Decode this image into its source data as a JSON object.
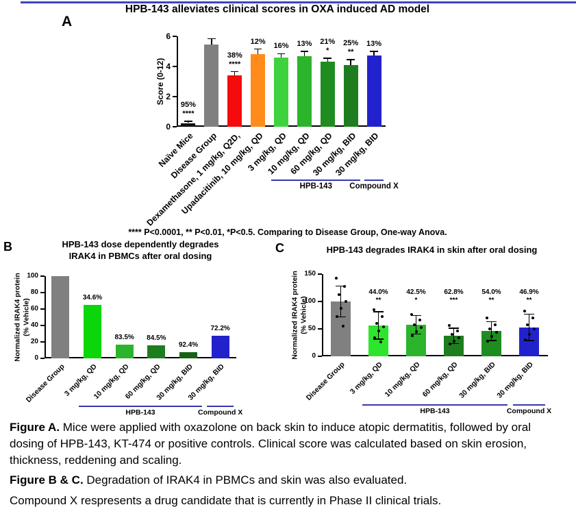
{
  "panels": {
    "a": "A",
    "b": "B",
    "c": "C"
  },
  "footnote": "**** P<0.0001, ** P<0.01, *P<0.5. Comparing to Disease Group, One-way Anova.",
  "captions": {
    "fig_a_lead": "Figure A.",
    "fig_a_text": " Mice were applied with oxazolone on back skin to induce atopic dermatitis, followed by oral dosing of HPB-143, KT-474 or positive controls. Clinical score was calculated based on skin erosion, thickness, reddening and scaling.",
    "fig_bc_lead": "Figure B & C.",
    "fig_bc_text": " Degradation of IRAK4 in PBMCs and skin was also evaluated.",
    "compound_x": "Compound X respresents a drug candidate that is currently in Phase II clinical trials."
  },
  "colors": {
    "top_rule": "#3a45c0",
    "group_line": "#3636b0"
  },
  "chart_data": [
    {
      "id": "chartA",
      "type": "bar",
      "title": "HPB-143 alleviates clinical scores in OXA induced AD model",
      "ylabel": "Score (0-12)",
      "ylim": [
        0,
        6
      ],
      "yticks": [
        0,
        2,
        4,
        6
      ],
      "categories": [
        "Naïve Mice",
        "Disease Group",
        "Dexamethasone, 1 mg/kg, Q2D,",
        "Upadacitinib, 10 mg/kg, QD",
        "3 mg/kg, QD",
        "10 mg/kg, QD",
        "60 mg/kg, QD",
        "30 mg/kg, BID",
        "30 mg/kg, BID"
      ],
      "values": [
        0.25,
        5.45,
        3.4,
        4.8,
        4.6,
        4.7,
        4.3,
        4.1,
        4.75
      ],
      "errors": [
        0.12,
        0.4,
        0.25,
        0.35,
        0.25,
        0.3,
        0.25,
        0.35,
        0.25
      ],
      "bar_colors": [
        "#111111",
        "#808080",
        "#f40b0b",
        "#ff8c1a",
        "#3fd23f",
        "#2cb42c",
        "#1f8c1f",
        "#1e7d1e",
        "#2222cc"
      ],
      "annotations": [
        "95%\n****",
        "",
        "38%\n****",
        "12%",
        "16%",
        "13%",
        "21%\n*",
        "25%\n**",
        "13%"
      ],
      "groups": [
        {
          "label": "HPB-143",
          "from": 4,
          "to": 7
        },
        {
          "label": "Compound X",
          "from": 8,
          "to": 8
        }
      ]
    },
    {
      "id": "chartB",
      "type": "bar",
      "title": "HPB-143 dose dependently degrades IRAK4 in PBMCs after oral dosing",
      "title_lines": [
        "HPB-143 dose dependently degrades",
        "IRAK4 in PBMCs after oral dosing"
      ],
      "ylabel": "Normalized IRAK4 protein\n(% Vehicle)",
      "ylim": [
        0,
        100
      ],
      "yticks": [
        0,
        20,
        40,
        60,
        80,
        100
      ],
      "categories": [
        "Disease Group",
        "3 mg/kg, QD",
        "10 mg/kg, QD",
        "60 mg/kg, QD",
        "30 mg/kg, BID",
        "30 mg/kg, BID"
      ],
      "values": [
        100,
        65.4,
        16.5,
        15.5,
        7.6,
        27.8
      ],
      "errors": null,
      "bar_colors": [
        "#808080",
        "#0ad60a",
        "#2cb42c",
        "#1e7d1e",
        "#176117",
        "#2222cc"
      ],
      "annotations": [
        "",
        "34.6%",
        "83.5%",
        "84.5%",
        "92.4%",
        "72.2%"
      ],
      "groups": [
        {
          "label": "HPB-143",
          "from": 1,
          "to": 4
        },
        {
          "label": "Compound X",
          "from": 5,
          "to": 5
        }
      ]
    },
    {
      "id": "chartC",
      "type": "bar",
      "title": "HPB-143 degrades IRAK4 in skin after oral dosing",
      "ylabel": "Normalized IRAK4 protein\n(% Vehicle)",
      "ylim": [
        0,
        150
      ],
      "yticks": [
        0,
        50,
        100,
        150
      ],
      "categories": [
        "Disease Group",
        "3 mg/kg, QD",
        "10 mg/kg, QD",
        "60 mg/kg, QD",
        "30 mg/kg, BID",
        "30 mg/kg, BID"
      ],
      "values": [
        100,
        56,
        57.5,
        37,
        46,
        53
      ],
      "errors": [
        28,
        25,
        17,
        14,
        17,
        24
      ],
      "bar_colors": [
        "#808080",
        "#2ee52e",
        "#2cb42c",
        "#1e7d1e",
        "#1f8c1f",
        "#2222cc"
      ],
      "annotations": [
        "",
        "44.0%\n**",
        "42.5%\n*",
        "62.8%\n***",
        "54.0%\n**",
        "46.9%\n**"
      ],
      "dots": [
        [
          143,
          128,
          112,
          100,
          88,
          72,
          55
        ],
        [
          85,
          72,
          60,
          54,
          46,
          34,
          26
        ],
        [
          76,
          66,
          58,
          52,
          45,
          38
        ],
        [
          56,
          46,
          40,
          34,
          28,
          22
        ],
        [
          70,
          58,
          50,
          44,
          36,
          28
        ],
        [
          82,
          70,
          58,
          50,
          40,
          30
        ]
      ],
      "groups": [
        {
          "label": "HPB-143",
          "from": 1,
          "to": 4
        },
        {
          "label": "Compound X",
          "from": 5,
          "to": 5
        }
      ]
    }
  ]
}
